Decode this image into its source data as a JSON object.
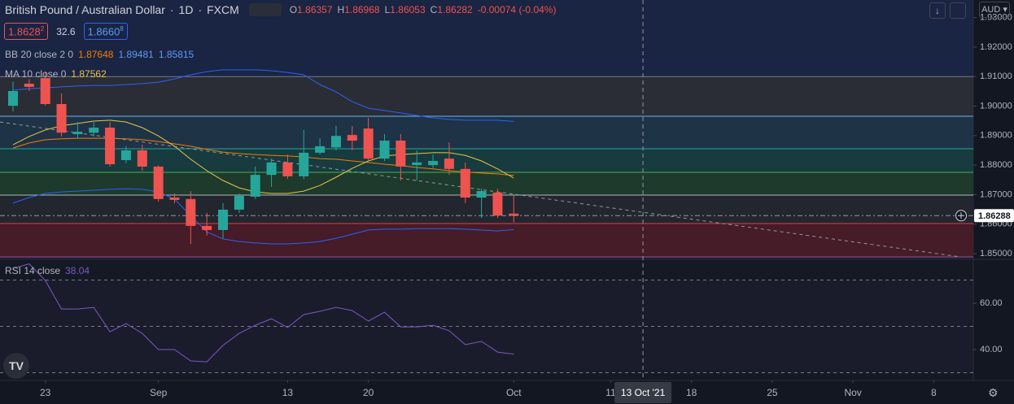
{
  "chart_data": {
    "type": "candlestick",
    "title": "British Pound / Australian Dollar",
    "interval": "1D",
    "source": "FXCM",
    "ohlc_labels": [
      "O",
      "H",
      "L",
      "C"
    ],
    "change": "-0.00074 (-0.04%)",
    "bid": {
      "text": "1.8628",
      "sup": "2"
    },
    "spread": "32.6",
    "ask": {
      "text": "1.8660",
      "sup": "8"
    },
    "currency": "AUD",
    "up_color": "#26a69a",
    "down_color": "#ef5350",
    "open": [
      1.9001,
      1.9076,
      1.9095,
      1.9007,
      1.8905,
      1.891,
      1.8927,
      1.8817,
      1.885,
      1.8795,
      1.869,
      1.8685,
      1.8594,
      1.858,
      1.8649,
      1.8693,
      1.8767,
      1.8809,
      1.8762,
      1.8842,
      1.886,
      1.8902,
      1.8924,
      1.8822,
      1.8883,
      1.88,
      1.88,
      1.8822,
      1.8787,
      1.869,
      1.8707,
      1.86357
    ],
    "high": [
      1.9084,
      1.9092,
      1.9117,
      1.9043,
      1.8946,
      1.8946,
      1.8946,
      1.8865,
      1.8869,
      1.88,
      1.8704,
      1.8712,
      1.8638,
      1.8671,
      1.8704,
      1.8795,
      1.8822,
      1.8836,
      1.8919,
      1.8891,
      1.8933,
      1.8933,
      1.896,
      1.8905,
      1.8905,
      1.885,
      1.8836,
      1.8877,
      1.8809,
      1.872,
      1.872,
      1.86968
    ],
    "low": [
      1.8982,
      1.9051,
      1.9001,
      1.8897,
      1.8891,
      1.8897,
      1.8795,
      1.8806,
      1.8781,
      1.8676,
      1.8671,
      1.8533,
      1.8561,
      1.8552,
      1.8638,
      1.8685,
      1.8726,
      1.8753,
      1.8753,
      1.8836,
      1.885,
      1.885,
      1.8817,
      1.8814,
      1.8748,
      1.8748,
      1.879,
      1.8767,
      1.8671,
      1.8621,
      1.8621,
      1.86053
    ],
    "close": [
      1.9051,
      1.9065,
      1.9007,
      1.891,
      1.8913,
      1.8927,
      1.8803,
      1.885,
      1.8795,
      1.8685,
      1.8682,
      1.8594,
      1.858,
      1.8649,
      1.8696,
      1.8767,
      1.8809,
      1.8762,
      1.8842,
      1.8864,
      1.8899,
      1.8883,
      1.8822,
      1.8883,
      1.8795,
      1.8809,
      1.8814,
      1.8787,
      1.869,
      1.8712,
      1.8629,
      1.86282
    ],
    "xlim": [
      -0.806,
      59.45
    ],
    "xticks": [
      {
        "value": 2,
        "label": "23"
      },
      {
        "value": 9,
        "label": "Sep"
      },
      {
        "value": 17,
        "label": "13"
      },
      {
        "value": 22,
        "label": "20"
      },
      {
        "value": 31,
        "label": "Oct"
      },
      {
        "value": 37,
        "label": "11"
      },
      {
        "value": 42,
        "label": "18"
      },
      {
        "value": 47,
        "label": "25"
      },
      {
        "value": 52,
        "label": "Nov"
      },
      {
        "value": 57,
        "label": "8"
      }
    ],
    "ylim": [
      1.84835,
      1.93596
    ],
    "yticks": [
      {
        "value": 1.85,
        "label": "1.85000"
      },
      {
        "value": 1.86,
        "label": "1.86000"
      },
      {
        "value": 1.87,
        "label": "1.87000"
      },
      {
        "value": 1.88,
        "label": "1.88000"
      },
      {
        "value": 1.89,
        "label": "1.89000"
      },
      {
        "value": 1.9,
        "label": "1.90000"
      },
      {
        "value": 1.91,
        "label": "1.91000"
      },
      {
        "value": 1.92,
        "label": "1.92000"
      },
      {
        "value": 1.93,
        "label": "1.93000"
      }
    ],
    "price_line": 1.86288,
    "crosshair": {
      "x": 39,
      "label": "13 Oct '21"
    },
    "trend_line": {
      "x": [
        -0.806,
        58.64
      ],
      "y": [
        1.8946,
        1.8489
      ]
    },
    "levels": [
      {
        "value": 1.91,
        "color": "#787b86",
        "fill": "#2a2d35"
      },
      {
        "value": 1.89656,
        "color": "#64b5f6",
        "fill": "#1f3346"
      },
      {
        "value": 1.88554,
        "color": "#26a69a",
        "fill": "#173b3e"
      },
      {
        "value": 1.87755,
        "color": "#4caf50",
        "fill": "#1d3a2c"
      },
      {
        "value": 1.86983,
        "color": "#b2b5be",
        "fill": "#22262f"
      },
      {
        "value": 1.86019,
        "color": "#f23645",
        "fill": "#451c27"
      },
      {
        "value": 1.8489,
        "color": "#9c4a8a"
      }
    ],
    "bollinger": {
      "label": "BB 20 close 2 0",
      "basis": {
        "color": "#f57c00",
        "values": [
          1.8858,
          1.8875,
          1.8886,
          1.8889,
          1.8891,
          1.8891,
          1.8891,
          1.8889,
          1.8886,
          1.888,
          1.8872,
          1.8864,
          1.8853,
          1.8844,
          1.8839,
          1.8836,
          1.8833,
          1.8831,
          1.8828,
          1.8822,
          1.882,
          1.8814,
          1.8809,
          1.8803,
          1.8798,
          1.8792,
          1.8787,
          1.8781,
          1.8776,
          1.8773,
          1.877,
          1.87648
        ]
      },
      "upper": {
        "color": "#2962ff",
        "values": [
          1.9054,
          1.9059,
          1.9062,
          1.9065,
          1.9068,
          1.907,
          1.907,
          1.9073,
          1.9076,
          1.9081,
          1.9092,
          1.9106,
          1.9117,
          1.9123,
          1.9123,
          1.9123,
          1.912,
          1.9114,
          1.9106,
          1.9073,
          1.9048,
          1.9015,
          1.8993,
          1.8985,
          1.8977,
          1.8968,
          1.896,
          1.8955,
          1.8952,
          1.8952,
          1.8952,
          1.89481
        ]
      },
      "lower": {
        "color": "#2962ff",
        "values": [
          1.8671,
          1.869,
          1.8704,
          1.8709,
          1.8712,
          1.8715,
          1.8718,
          1.872,
          1.8718,
          1.8709,
          1.8685,
          1.8629,
          1.8574,
          1.855,
          1.8541,
          1.8536,
          1.8533,
          1.8533,
          1.8536,
          1.8541,
          1.8552,
          1.8566,
          1.858,
          1.8583,
          1.8583,
          1.8585,
          1.8585,
          1.8585,
          1.8583,
          1.858,
          1.8577,
          1.85815
        ]
      }
    },
    "ma": {
      "label": "MA 10 close 0",
      "color": "#e8c547",
      "values": [
        1.8869,
        1.8897,
        1.8919,
        1.8933,
        1.8941,
        1.8949,
        1.8952,
        1.8946,
        1.8927,
        1.8899,
        1.8864,
        1.882,
        1.8781,
        1.8748,
        1.8723,
        1.8709,
        1.8704,
        1.8704,
        1.8712,
        1.8731,
        1.8759,
        1.8789,
        1.8814,
        1.8831,
        1.8836,
        1.8839,
        1.8842,
        1.8842,
        1.8833,
        1.8814,
        1.8787,
        1.87562
      ]
    },
    "rsi": {
      "label": "RSI 14 close",
      "color": "#7e57c2",
      "values": [
        75,
        77,
        69.8,
        57.5,
        57.5,
        58.2,
        47.7,
        51.2,
        47.0,
        40.0,
        40.0,
        35.1,
        34.7,
        41.8,
        47.0,
        50.5,
        53.3,
        49.5,
        55.1,
        56.5,
        58.2,
        56.8,
        52.3,
        56.1,
        49.8,
        49.8,
        50.5,
        48.1,
        42.1,
        43.5,
        38.9,
        38.04
      ],
      "ylim": [
        26.67,
        78.6
      ],
      "yticks": [
        {
          "value": 40,
          "label": "40.00"
        },
        {
          "value": 60,
          "label": "60.00"
        }
      ],
      "levels": [
        70,
        50,
        30
      ]
    }
  }
}
